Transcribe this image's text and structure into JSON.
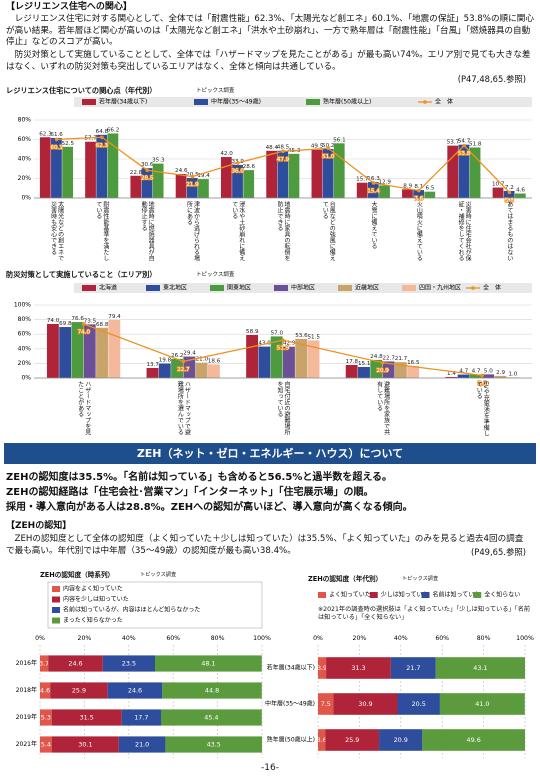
{
  "section_title": "【レジリエンス住宅への関心】",
  "paragraph_1": "レジリエンス住宅に対する関心として、全体では「耐震性能」62.3%、「太陽光など創エネ」60.1%、「地震の保証」53.8%の順に関心が高い結果。若年層ほど関心が高いのは「太陽光など創エネ」「洪水や土砂崩れ」、一方で熟年層は「耐震性能」「台風」「燃焼器具の自動停止」などのスコアが高い。",
  "paragraph_2": "防災対策として実施していることとして、全体では「ハザードマップを見たことがある」が最も高い74%。エリア別で見ても大きな差はなく、いずれの防災対策も突出しているエリアはなく、全体と傾向は共通している。",
  "reference_1": "(P47,48,65.参照)",
  "banner": "ZEH（ネット・ゼロ・エネルギー・ハウス）について",
  "highlights": [
    "ZEHの認知度は35.5%。「名前は知っている」も含めると56.5%と過半数を超える。",
    "ZEHの認知経路は「住宅会社･営業マン」「インターネット」「住宅展示場」の順。",
    "採用・導入意向がある人は28.8%。ZEHへの認知が高いほど、導入意向が高くなる傾向。"
  ],
  "subsection_title": "【ZEHの認知】",
  "paragraph_3": "ZEHの認知度として全体の認知度（よく知っていた＋少しは知っていた）は35.5%、「よく知っていた」のみを見ると過去4回の調査で最も高い。年代別では中年層（35〜49歳）の認知度が最も高い38.4%。",
  "reference_2": "(P49,65.参照)",
  "page_number": "-16-",
  "chart_data": [
    {
      "type": "bar",
      "title": "レジリエンス住宅についての関心点（年代別）",
      "note": "トピックス調査",
      "categories": [
        "太陽光などの創エネで災害時も安心できる",
        "耐震性能基準を満たしている",
        "地震時に燃焼器具が自動停止する",
        "津波から逃げられる場所にある",
        "浸水や土砂崩れに備えている",
        "地震時に家具の転倒を防止できる",
        "台風などの強風に備えている",
        "大雪に備えている",
        "火山噴火に備えている",
        "災害時に住宅会社が保証・補修をしてくれる",
        "あてはまるものはない"
      ],
      "series": [
        {
          "name": "若年層(34歳以下)",
          "color": "#b0243a",
          "values": [
            62.3,
            57.7,
            22.8,
            24.6,
            42.0,
            48.4,
            49.5,
            15.7,
            8.9,
            53.7,
            10.7
          ],
          "value_labels": [
            "62.3",
            "57.7",
            "22.8",
            "24.6",
            "42.0",
            "48.4",
            "49.5",
            "15.7",
            "8.9",
            "53.7",
            "10.7"
          ]
        },
        {
          "name": "中年層(35〜49歳)",
          "color": "#2e4d9c",
          "values": [
            61.6,
            64.8,
            30.6,
            20.5,
            33.9,
            48.5,
            50.2,
            16.3,
            8.1,
            54.7,
            7.2
          ]
        },
        {
          "name": "熟年層(50歳以上)",
          "color": "#4e9a3e",
          "values": [
            52.5,
            66.2,
            35.3,
            19.4,
            28.6,
            45.3,
            56.1,
            12.9,
            6.5,
            51.8,
            4.6
          ]
        },
        {
          "name": "全　体",
          "color": "#f0901e",
          "type": "line",
          "values": [
            60.1,
            62.3,
            28.5,
            21.9,
            36.0,
            47.9,
            51.0,
            15.4,
            7.6,
            53.8,
            5.8
          ],
          "value_labels": [
            "60.1",
            "62.3",
            "28.5",
            "21.9",
            "36.0",
            "47.9",
            "51.0",
            "15.4",
            "7.6",
            "53.8",
            "5.8"
          ]
        }
      ],
      "ylim": [
        0,
        80
      ],
      "yticks": [
        {
          "value": 0,
          "label": "0%"
        },
        {
          "value": 20,
          "label": "20%"
        },
        {
          "value": 40,
          "label": "40%"
        },
        {
          "value": 60,
          "label": "60%"
        },
        {
          "value": 80,
          "label": "80%"
        }
      ],
      "grid": true
    },
    {
      "type": "bar",
      "title": "防災対策として実施していること（エリア別）",
      "note": "トピックス調査",
      "categories": [
        "ハザードマップを見たことがある",
        "ハザードマップで避難場所を選んでいる",
        "自宅付近の避難場所を知っている",
        "避難場所を家族で共有している",
        "EVや充電池を準備している"
      ],
      "series": [
        {
          "name": "北海道",
          "color": "#b0243a",
          "values": [
            74.0,
            13.7,
            58.9,
            17.8,
            1.4
          ],
          "value_labels": [
            "74.0",
            "13.7",
            "58.9",
            "17.8",
            "1.4"
          ]
        },
        {
          "name": "東北地区",
          "color": "#2e4d9c",
          "values": [
            69.8,
            19.8,
            43.0,
            15.1,
            4.7
          ],
          "value_labels": [
            "69.8",
            "19.8",
            "43.0",
            "15.1",
            "4.7"
          ]
        },
        {
          "name": "関東地区",
          "color": "#4e9a3e",
          "values": [
            76.6,
            26.2,
            57.0,
            24.8,
            4.7
          ],
          "value_labels": [
            "76.6",
            "26.2",
            "57.0",
            "24.8",
            "4.7"
          ]
        },
        {
          "name": "中部地区",
          "color": "#6b4f97",
          "values": [
            73.5,
            29.4,
            42.9,
            22.7,
            5.0
          ],
          "value_labels": [
            "73.5",
            "29.4",
            "42.9",
            "22.7",
            "5.0"
          ]
        },
        {
          "name": "近畿地区",
          "color": "#c8a46a",
          "values": [
            68.8,
            21.0,
            53.6,
            21.7,
            2.9
          ],
          "value_labels": [
            "68.8",
            "21.0",
            "53.6",
            "21.7",
            "2.9"
          ]
        },
        {
          "name": "四国・九州地区",
          "color": "#f4b89a",
          "values": [
            79.4,
            18.6,
            51.5,
            16.5,
            1.0
          ],
          "value_labels": [
            "79.4",
            "18.6",
            "51.5",
            "16.5",
            "1.0"
          ]
        },
        {
          "name": "全　体",
          "color": "#f0901e",
          "type": "line",
          "values": [
            74.0,
            22.7,
            51.9,
            20.9,
            3.6
          ],
          "value_labels": [
            "74.0",
            "22.7",
            "51.9",
            "20.9",
            "3.6"
          ]
        }
      ],
      "ylim": [
        0,
        100
      ],
      "yticks": [
        {
          "value": 0,
          "label": "0%"
        },
        {
          "value": 20,
          "label": "20%"
        },
        {
          "value": 40,
          "label": "40%"
        },
        {
          "value": 60,
          "label": "60%"
        },
        {
          "value": 80,
          "label": "80%"
        },
        {
          "value": 100,
          "label": "100%"
        }
      ],
      "grid": true
    },
    {
      "type": "stacked_bar",
      "title": "ZEHの認知度（時系列）",
      "note": "トピックス調査",
      "categories": [
        "2016年",
        "2018年",
        "2019年",
        "2021年"
      ],
      "series": [
        {
          "name": "内容をよく知っていた",
          "color": "#e0574a",
          "values": [
            3.7,
            4.6,
            5.3,
            5.4
          ]
        },
        {
          "name": "内容を少しは知っていた",
          "color": "#b0243a",
          "values": [
            24.6,
            25.9,
            31.5,
            30.1
          ]
        },
        {
          "name": "名前は知っているが、内容はほとんど知らなかった",
          "color": "#2e4d9c",
          "values": [
            23.5,
            24.6,
            17.7,
            21.0
          ],
          "value_labels": [
            "23.5",
            "24.6",
            "17.7",
            "21.0"
          ]
        },
        {
          "name": "まったく知らなかった",
          "color": "#5b9b3d",
          "values": [
            48.1,
            44.8,
            45.4,
            43.5
          ]
        }
      ],
      "xlim": [
        0,
        100
      ],
      "xticks": [
        {
          "value": 0,
          "label": "0%"
        },
        {
          "value": 20,
          "label": "20%"
        },
        {
          "value": 40,
          "label": "40%"
        },
        {
          "value": 60,
          "label": "60%"
        },
        {
          "value": 80,
          "label": "80%"
        },
        {
          "value": 100,
          "label": "100%"
        }
      ],
      "grid": true
    },
    {
      "type": "stacked_bar",
      "title": "ZEHの認知度（年代別）",
      "note": "トピックス調査",
      "footnote": "※2021年の調査時の選択肢は「よく知っていた」「少しは知っている」「名前は知っている」「全く知らない」",
      "categories": [
        "若年層(34歳以下)",
        "中年層(35〜49歳)",
        "熟年層(50歳以上)"
      ],
      "series": [
        {
          "name": "よく知っていた",
          "color": "#e0574a",
          "values": [
            3.9,
            7.5,
            3.6
          ]
        },
        {
          "name": "少しは知っていた",
          "color": "#b0243a",
          "values": [
            31.3,
            30.9,
            25.9
          ]
        },
        {
          "name": "名前は知っていた",
          "color": "#2e4d9c",
          "values": [
            21.7,
            20.5,
            20.9
          ]
        },
        {
          "name": "全く知らない",
          "color": "#5b9b3d",
          "values": [
            43.1,
            41.0,
            49.6
          ],
          "value_labels": [
            "43.1",
            "41.0",
            "49.6"
          ]
        }
      ],
      "xlim": [
        0,
        100
      ],
      "xticks": [
        {
          "value": 0,
          "label": "0%"
        },
        {
          "value": 20,
          "label": "20%"
        },
        {
          "value": 40,
          "label": "40%"
        },
        {
          "value": 60,
          "label": "60%"
        },
        {
          "value": 80,
          "label": "80%"
        },
        {
          "value": 100,
          "label": "100%"
        }
      ],
      "grid": true
    }
  ]
}
